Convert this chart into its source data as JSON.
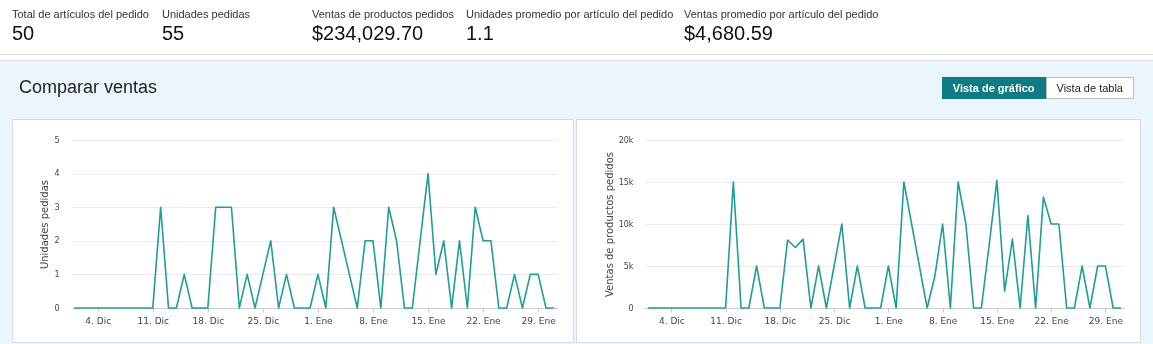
{
  "chart_data": [
    {
      "type": "other",
      "annotations": [
        "Total de artículos del pedido",
        "50",
        "Unidades pedidas",
        "55",
        "Ventas de productos pedidos",
        "$234,029.70",
        "Unidades promedio por artículo del pedido",
        "1.1",
        "Ventas promedio por artículo del pedido",
        "$4,680.59"
      ]
    },
    {
      "type": "other",
      "title": "Comparar ventas",
      "annotations": [
        "Vista de gráfico",
        "Vista de tabla"
      ]
    },
    {
      "type": "line",
      "ylabel": "Unidades pedidas",
      "grid": "y",
      "marker": "none",
      "line_style": "solid",
      "categories": [
        null,
        null,
        null,
        "4. Dic",
        null,
        null,
        null,
        null,
        null,
        null,
        "11. Dic",
        null,
        null,
        null,
        null,
        null,
        null,
        "18. Dic",
        null,
        null,
        null,
        null,
        null,
        null,
        "25. Dic",
        null,
        null,
        null,
        null,
        null,
        null,
        "1. Ene",
        null,
        null,
        null,
        null,
        null,
        null,
        "8. Ene",
        null,
        null,
        null,
        null,
        null,
        null,
        "15. Ene",
        null,
        null,
        null,
        null,
        null,
        null,
        "22. Ene",
        null,
        null,
        null,
        null,
        null,
        null,
        "29. Ene",
        null,
        null
      ],
      "ylim": [
        0,
        5
      ],
      "yticks": [
        0,
        1,
        2,
        3,
        4,
        5
      ],
      "series": [
        {
          "color": "#1f9e9a",
          "values": [
            0,
            0,
            0,
            0,
            0,
            0,
            0,
            0,
            0,
            0,
            0,
            3,
            0,
            0,
            1,
            0,
            0,
            0,
            3,
            3,
            3,
            0,
            1,
            0,
            1,
            2,
            0,
            1,
            0,
            0,
            0,
            1,
            0,
            3,
            2,
            1,
            0,
            2,
            2,
            0,
            3,
            2,
            0,
            0,
            2,
            4,
            1,
            2,
            0,
            2,
            0,
            3,
            2,
            2,
            0,
            0,
            1,
            0,
            1,
            1,
            0,
            0
          ]
        }
      ]
    },
    {
      "type": "line",
      "ylabel": "Ventas de productos pedidos",
      "grid": "y",
      "marker": "none",
      "line_style": "solid",
      "categories": [
        null,
        null,
        null,
        "4. Dic",
        null,
        null,
        null,
        null,
        null,
        null,
        "11. Dic",
        null,
        null,
        null,
        null,
        null,
        null,
        "18. Dic",
        null,
        null,
        null,
        null,
        null,
        null,
        "25. Dic",
        null,
        null,
        null,
        null,
        null,
        null,
        "1. Ene",
        null,
        null,
        null,
        null,
        null,
        null,
        "8. Ene",
        null,
        null,
        null,
        null,
        null,
        null,
        "15. Ene",
        null,
        null,
        null,
        null,
        null,
        null,
        "22. Ene",
        null,
        null,
        null,
        null,
        null,
        null,
        "29. Ene",
        null,
        null
      ],
      "ylim": [
        0,
        20000
      ],
      "yticks": [
        0,
        {
          "value": 5000,
          "label": "5k"
        },
        {
          "value": 10000,
          "label": "10k"
        },
        {
          "value": 15000,
          "label": "15k"
        },
        {
          "value": 20000,
          "label": "20k"
        }
      ],
      "series": [
        {
          "color": "#1f9e9a",
          "values": [
            0,
            0,
            0,
            0,
            0,
            0,
            0,
            0,
            0,
            0,
            0,
            15000,
            0,
            0,
            5000,
            0,
            0,
            0,
            8100,
            7200,
            8200,
            0,
            5000,
            0,
            5000,
            10000,
            0,
            5000,
            0,
            0,
            0,
            5000,
            0,
            15000,
            10000,
            5000,
            0,
            3800,
            10000,
            0,
            15000,
            10000,
            0,
            0,
            7500,
            15200,
            2000,
            8200,
            0,
            11000,
            0,
            13200,
            10000,
            10000,
            0,
            0,
            5000,
            0,
            5000,
            5000,
            0,
            0
          ]
        }
      ]
    }
  ]
}
